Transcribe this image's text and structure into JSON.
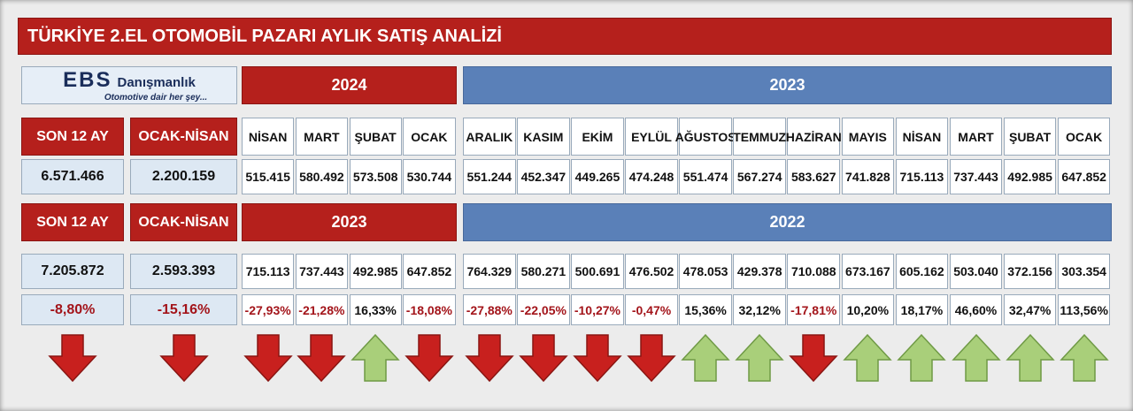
{
  "title": "TÜRKİYE 2.EL OTOMOBİL PAZARI AYLIK SATIŞ ANALİZİ",
  "logo": {
    "name": "EBS",
    "brand": "Danışmanlık",
    "tagline": "Otomotive dair her şey..."
  },
  "current": {
    "labels": [
      "SON 12 AY",
      "OCAK-NİSAN"
    ],
    "totals": [
      "6.571.466",
      "2.200.159"
    ],
    "year_a": "2024",
    "year_b": "2023",
    "months": [
      "NİSAN",
      "MART",
      "ŞUBAT",
      "OCAK",
      "ARALIK",
      "KASIM",
      "EKİM",
      "EYLÜL",
      "AĞUSTOS",
      "TEMMUZ",
      "HAZİRAN",
      "MAYIS",
      "NİSAN",
      "MART",
      "ŞUBAT",
      "OCAK"
    ],
    "values": [
      "515.415",
      "580.492",
      "573.508",
      "530.744",
      "551.244",
      "452.347",
      "449.265",
      "474.248",
      "551.474",
      "567.274",
      "583.627",
      "741.828",
      "715.113",
      "737.443",
      "492.985",
      "647.852"
    ]
  },
  "previous": {
    "labels": [
      "SON 12 AY",
      "OCAK-NİSAN"
    ],
    "totals": [
      "7.205.872",
      "2.593.393"
    ],
    "year_a": "2023",
    "year_b": "2022",
    "values": [
      "715.113",
      "737.443",
      "492.985",
      "647.852",
      "764.329",
      "580.271",
      "500.691",
      "476.502",
      "478.053",
      "429.378",
      "710.088",
      "673.167",
      "605.162",
      "503.040",
      "372.156",
      "303.354"
    ]
  },
  "change": {
    "totals": [
      "-8,80%",
      "-15,16%"
    ],
    "values": [
      "-27,93%",
      "-21,28%",
      "16,33%",
      "-18,08%",
      "-27,88%",
      "-22,05%",
      "-10,27%",
      "-0,47%",
      "15,36%",
      "32,12%",
      "-17,81%",
      "10,20%",
      "18,17%",
      "46,60%",
      "32,47%",
      "113,56%"
    ]
  }
}
